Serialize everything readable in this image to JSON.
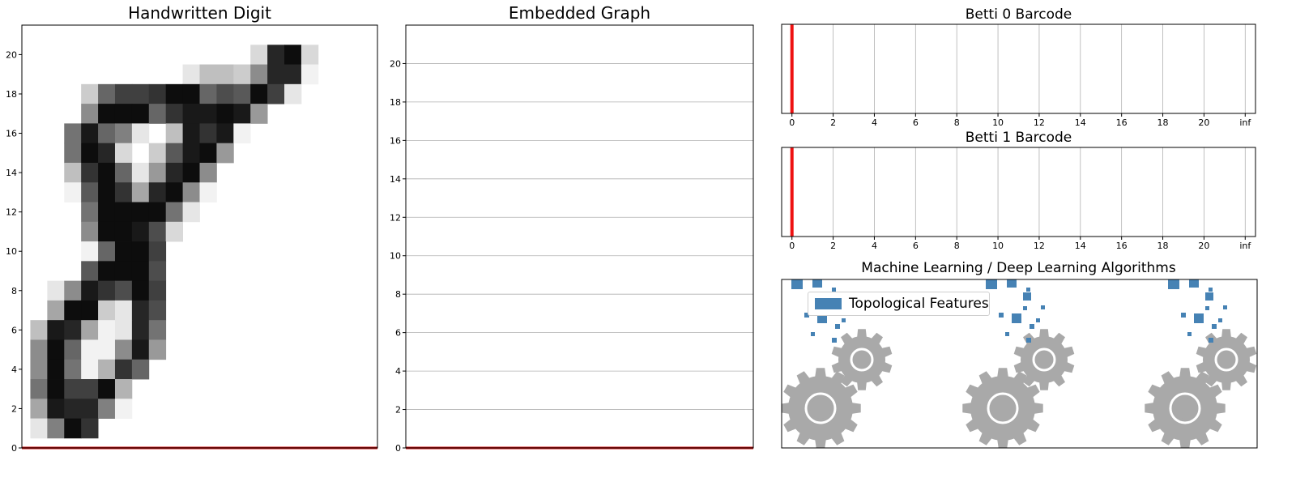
{
  "colors": {
    "frame": "#000000",
    "grid": "#b0b0b0",
    "bar": "#ee1111",
    "baseline": "#cc1111",
    "feature": "#4682b4",
    "gear": "#a9a9a9"
  },
  "chart_data": [
    {
      "id": "digit",
      "type": "heatmap",
      "title": "Handwritten Digit",
      "colormap": "gray_r",
      "xlim": [
        0,
        21
      ],
      "ylim": [
        0,
        21.5
      ],
      "yticks": [
        "0",
        "2",
        "4",
        "6",
        "8",
        "10",
        "12",
        "14",
        "16",
        "18",
        "20"
      ],
      "grid": false,
      "baseline_y": 0,
      "rows_top_to_bottom": [
        [
          0,
          0,
          0,
          0,
          0,
          0,
          0,
          0,
          0,
          0,
          0,
          0,
          0,
          0,
          0,
          0,
          0,
          0,
          0,
          0,
          0
        ],
        [
          0,
          0,
          0,
          0,
          0,
          0,
          0,
          0,
          0,
          0,
          0,
          0,
          0,
          0,
          15,
          85,
          95,
          15,
          0,
          0,
          0
        ],
        [
          0,
          0,
          0,
          0,
          0,
          0,
          0,
          0,
          0,
          0,
          10,
          25,
          25,
          20,
          45,
          85,
          85,
          5,
          0,
          0,
          0
        ],
        [
          0,
          0,
          0,
          0,
          20,
          60,
          75,
          75,
          80,
          95,
          95,
          60,
          70,
          65,
          95,
          75,
          10,
          0,
          0,
          0,
          0
        ],
        [
          0,
          0,
          0,
          0,
          45,
          95,
          95,
          95,
          60,
          80,
          90,
          90,
          95,
          90,
          40,
          0,
          0,
          0,
          0,
          0,
          0
        ],
        [
          0,
          0,
          0,
          55,
          90,
          60,
          50,
          10,
          0,
          25,
          90,
          80,
          90,
          5,
          0,
          0,
          0,
          0,
          0,
          0,
          0
        ],
        [
          0,
          0,
          0,
          55,
          95,
          85,
          15,
          0,
          20,
          65,
          90,
          95,
          40,
          0,
          0,
          0,
          0,
          0,
          0,
          0,
          0
        ],
        [
          0,
          0,
          0,
          25,
          80,
          95,
          60,
          10,
          40,
          85,
          95,
          45,
          0,
          0,
          0,
          0,
          0,
          0,
          0,
          0,
          0
        ],
        [
          0,
          0,
          0,
          5,
          65,
          95,
          80,
          35,
          85,
          95,
          45,
          5,
          0,
          0,
          0,
          0,
          0,
          0,
          0,
          0,
          0
        ],
        [
          0,
          0,
          0,
          0,
          55,
          95,
          95,
          95,
          95,
          55,
          10,
          0,
          0,
          0,
          0,
          0,
          0,
          0,
          0,
          0,
          0
        ],
        [
          0,
          0,
          0,
          0,
          45,
          95,
          95,
          90,
          70,
          15,
          0,
          0,
          0,
          0,
          0,
          0,
          0,
          0,
          0,
          0,
          0
        ],
        [
          0,
          0,
          0,
          0,
          5,
          60,
          95,
          95,
          75,
          0,
          0,
          0,
          0,
          0,
          0,
          0,
          0,
          0,
          0,
          0,
          0
        ],
        [
          0,
          0,
          0,
          0,
          65,
          95,
          95,
          95,
          70,
          0,
          0,
          0,
          0,
          0,
          0,
          0,
          0,
          0,
          0,
          0,
          0
        ],
        [
          0,
          0,
          10,
          45,
          90,
          80,
          70,
          95,
          75,
          0,
          0,
          0,
          0,
          0,
          0,
          0,
          0,
          0,
          0,
          0,
          0
        ],
        [
          0,
          0,
          35,
          95,
          95,
          20,
          10,
          85,
          70,
          0,
          0,
          0,
          0,
          0,
          0,
          0,
          0,
          0,
          0,
          0,
          0
        ],
        [
          0,
          25,
          90,
          85,
          35,
          5,
          10,
          85,
          55,
          0,
          0,
          0,
          0,
          0,
          0,
          0,
          0,
          0,
          0,
          0,
          0
        ],
        [
          0,
          45,
          95,
          60,
          5,
          5,
          45,
          90,
          40,
          0,
          0,
          0,
          0,
          0,
          0,
          0,
          0,
          0,
          0,
          0,
          0
        ],
        [
          0,
          45,
          95,
          55,
          5,
          30,
          80,
          60,
          0,
          0,
          0,
          0,
          0,
          0,
          0,
          0,
          0,
          0,
          0,
          0,
          0
        ],
        [
          0,
          55,
          95,
          75,
          75,
          95,
          30,
          0,
          0,
          0,
          0,
          0,
          0,
          0,
          0,
          0,
          0,
          0,
          0,
          0,
          0
        ],
        [
          0,
          35,
          90,
          85,
          85,
          50,
          5,
          0,
          0,
          0,
          0,
          0,
          0,
          0,
          0,
          0,
          0,
          0,
          0,
          0,
          0
        ],
        [
          0,
          10,
          50,
          95,
          80,
          0,
          0,
          0,
          0,
          0,
          0,
          0,
          0,
          0,
          0,
          0,
          0,
          0,
          0,
          0,
          0
        ],
        [
          0,
          0,
          0,
          0,
          0,
          0,
          0,
          0,
          0,
          0,
          0,
          0,
          0,
          0,
          0,
          0,
          0,
          0,
          0,
          0,
          0
        ]
      ]
    },
    {
      "id": "graph",
      "type": "line",
      "title": "Embedded Graph",
      "xlim": [
        0,
        1
      ],
      "ylim": [
        0,
        22
      ],
      "yticks": [
        "0",
        "2",
        "4",
        "6",
        "8",
        "10",
        "12",
        "14",
        "16",
        "18",
        "20"
      ],
      "grid": true,
      "baseline_y": 0
    },
    {
      "id": "betti0",
      "type": "bar",
      "title": "Betti 0 Barcode",
      "xlim": [
        -0.5,
        22.5
      ],
      "xticks": [
        "0",
        "2",
        "4",
        "6",
        "8",
        "10",
        "12",
        "14",
        "16",
        "18",
        "20",
        "inf"
      ],
      "grid": true,
      "bars": [
        {
          "birth": 0,
          "death": 0
        }
      ]
    },
    {
      "id": "betti1",
      "type": "bar",
      "title": "Betti 1 Barcode",
      "xlim": [
        -0.5,
        22.5
      ],
      "xticks": [
        "0",
        "2",
        "4",
        "6",
        "8",
        "10",
        "12",
        "14",
        "16",
        "18",
        "20",
        "inf"
      ],
      "grid": true,
      "bars": [
        {
          "birth": 0,
          "death": 0
        }
      ]
    },
    {
      "id": "ml",
      "type": "scatter",
      "title": "Machine Learning / Deep Learning Algorithms",
      "legend": "Topological Features",
      "legend_position": "upper-left",
      "gear_groups": 3
    }
  ]
}
